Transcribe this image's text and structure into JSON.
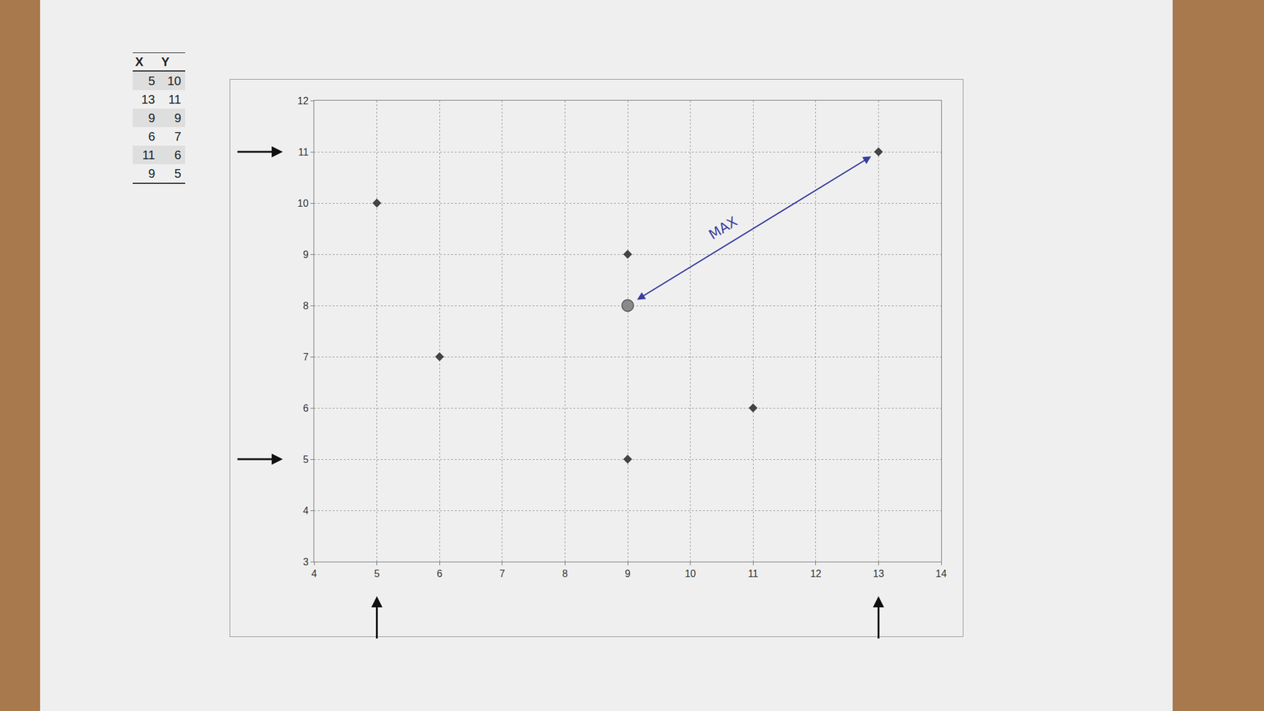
{
  "chart_data": {
    "type": "scatter",
    "x": [
      5,
      13,
      9,
      6,
      11,
      9
    ],
    "y": [
      10,
      11,
      9,
      7,
      6,
      5
    ],
    "color": "#444444",
    "marker": "diamond",
    "xlim": [
      4,
      14
    ],
    "ylim": [
      3,
      12
    ],
    "xticks": [
      4,
      5,
      6,
      7,
      8,
      9,
      10,
      11,
      12,
      13,
      14
    ],
    "yticks": [
      3,
      4,
      5,
      6,
      7,
      8,
      9,
      10,
      11,
      12
    ],
    "grid": true,
    "highlight": {
      "x": 9,
      "y": 8,
      "color": "#8a8a8a"
    },
    "annotations": [
      {
        "text": "MAX",
        "x": 9,
        "y": 8,
        "x2": 13,
        "y2": 11,
        "color": "#3b3fa0"
      }
    ]
  },
  "table": {
    "header": [
      "X",
      "Y"
    ],
    "rows": [
      [
        5,
        10
      ],
      [
        13,
        11
      ],
      [
        9,
        9
      ],
      [
        6,
        7
      ],
      [
        11,
        6
      ],
      [
        9,
        5
      ]
    ]
  }
}
